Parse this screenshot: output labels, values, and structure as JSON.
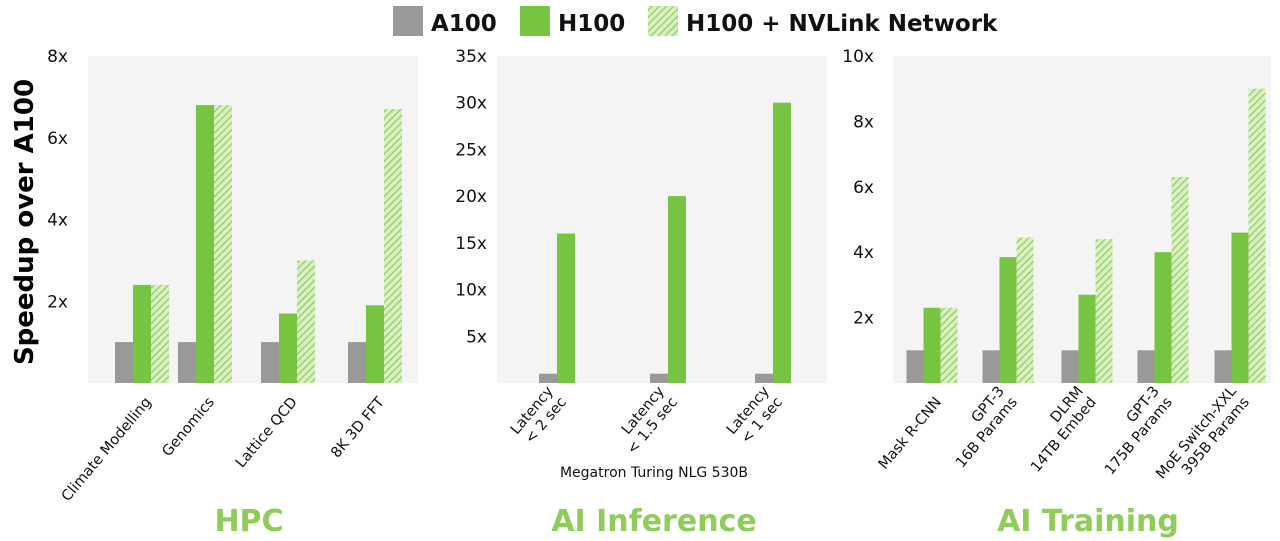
{
  "legend": [
    {
      "name": "A100",
      "color": "#999999",
      "pattern": "solid"
    },
    {
      "name": "H100",
      "color": "#76c442",
      "pattern": "solid"
    },
    {
      "name": "H100 + NVLink Network",
      "color": "#a9d97d",
      "pattern": "hatched"
    }
  ],
  "ylabel": "Speedup over A100",
  "colors": {
    "accent": "#76c442",
    "panel_bg": "#f4f4f4",
    "section_title": "#8fcc5a"
  },
  "chart_data": [
    {
      "type": "bar",
      "title": "HPC",
      "ylabel": "Speedup over A100",
      "ylim": [
        0,
        8
      ],
      "yticks": [
        {
          "v": 2,
          "label": "2x"
        },
        {
          "v": 4,
          "label": "4x"
        },
        {
          "v": 6,
          "label": "6x"
        },
        {
          "v": 8,
          "label": "8x"
        }
      ],
      "grid": false,
      "categories": [
        [
          "Climate Modelling"
        ],
        [
          "Genomics"
        ],
        [
          "Lattice QCD"
        ],
        [
          "8K 3D FFT"
        ]
      ],
      "series": [
        {
          "name": "A100",
          "values": [
            1,
            1,
            1,
            1
          ]
        },
        {
          "name": "H100",
          "values": [
            2.4,
            6.8,
            1.7,
            1.9
          ]
        },
        {
          "name": "H100 + NVLink Network",
          "values": [
            2.4,
            6.8,
            3.0,
            6.7
          ]
        }
      ]
    },
    {
      "type": "bar",
      "title": "AI Inference",
      "subtitle": "Megatron Turing NLG 530B",
      "ylim": [
        0,
        35
      ],
      "yticks": [
        {
          "v": 5,
          "label": "5x"
        },
        {
          "v": 10,
          "label": "10x"
        },
        {
          "v": 15,
          "label": "15x"
        },
        {
          "v": 20,
          "label": "20x"
        },
        {
          "v": 25,
          "label": "25x"
        },
        {
          "v": 30,
          "label": "30x"
        },
        {
          "v": 35,
          "label": "35x"
        }
      ],
      "grid": false,
      "categories": [
        [
          "Latency",
          "< 2 sec"
        ],
        [
          "Latency",
          "< 1.5 sec"
        ],
        [
          "Latency",
          "< 1 sec"
        ]
      ],
      "series": [
        {
          "name": "A100",
          "values": [
            1,
            1,
            1
          ]
        },
        {
          "name": "H100",
          "values": [
            16,
            20,
            30
          ]
        }
      ]
    },
    {
      "type": "bar",
      "title": "AI Training",
      "ylim": [
        0,
        10
      ],
      "yticks": [
        {
          "v": 2,
          "label": "2x"
        },
        {
          "v": 4,
          "label": "4x"
        },
        {
          "v": 6,
          "label": "6x"
        },
        {
          "v": 8,
          "label": "8x"
        },
        {
          "v": 10,
          "label": "10x"
        }
      ],
      "grid": false,
      "categories": [
        [
          "Mask R-CNN"
        ],
        [
          "GPT-3",
          "16B Params"
        ],
        [
          "DLRM",
          "14TB Embed"
        ],
        [
          "GPT-3",
          "175B Params"
        ],
        [
          "MoE Switch-XXL",
          "395B Params"
        ]
      ],
      "series": [
        {
          "name": "A100",
          "values": [
            1,
            1,
            1,
            1,
            1
          ]
        },
        {
          "name": "H100",
          "values": [
            2.3,
            3.85,
            2.7,
            4.0,
            4.6
          ]
        },
        {
          "name": "H100 + NVLink Network",
          "values": [
            2.3,
            4.45,
            4.4,
            6.3,
            9.0
          ]
        }
      ]
    }
  ]
}
